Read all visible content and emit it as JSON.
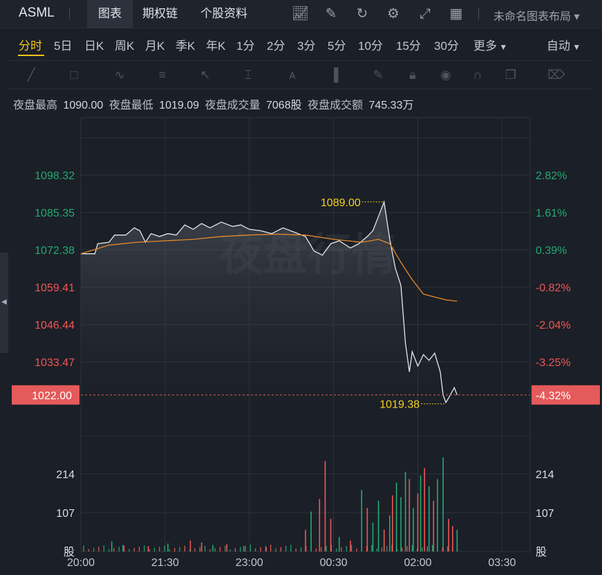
{
  "header": {
    "symbol": "ASML",
    "tabs": [
      "图表",
      "期权链",
      "个股资料"
    ],
    "layout_label": "未命名图表布局"
  },
  "timeframes": [
    "分时",
    "5日",
    "日K",
    "周K",
    "月K",
    "季K",
    "年K",
    "1分",
    "2分",
    "3分",
    "5分",
    "10分",
    "15分",
    "30分",
    "更多"
  ],
  "auto_label": "自动",
  "stats": {
    "high_label": "夜盘最高",
    "high": "1090.00",
    "low_label": "夜盘最低",
    "low": "1019.09",
    "vol_label": "夜盘成交量",
    "vol": "7068股",
    "amt_label": "夜盘成交额",
    "amt": "745.33万"
  },
  "watermark": "夜盘行情",
  "colors": {
    "up": "#22ab72",
    "down": "#f25656",
    "avg_line": "#e88a2c",
    "price_line": "#e8e8e8",
    "annotation": "#f5d123",
    "current_tag": "#e55a5a"
  },
  "chart_data": {
    "type": "line",
    "x_ticks": [
      "20:00",
      "21:30",
      "23:00",
      "00:30",
      "02:00",
      "03:30"
    ],
    "price_axis": [
      "1098.32",
      "1085.35",
      "1072.38",
      "1059.41",
      "1046.44",
      "1033.47"
    ],
    "pct_axis": [
      "2.82%",
      "1.61%",
      "0.39%",
      "-0.82%",
      "-2.04%",
      "-3.25%"
    ],
    "current_price": "1022.00",
    "current_pct": "-4.32%",
    "ylim": [
      1020,
      1098.32
    ],
    "annotation_high": "1089.00",
    "annotation_low": "1019.38",
    "volume_axis": [
      "214",
      "107"
    ],
    "volume_unit": "股",
    "price_series": [
      [
        20.0,
        1071.0
      ],
      [
        20.25,
        1071.0
      ],
      [
        20.3,
        1074.5
      ],
      [
        20.5,
        1075.0
      ],
      [
        20.6,
        1077.5
      ],
      [
        20.8,
        1077.5
      ],
      [
        20.95,
        1080.0
      ],
      [
        21.05,
        1079.0
      ],
      [
        21.15,
        1075.0
      ],
      [
        21.25,
        1078.0
      ],
      [
        21.4,
        1077.0
      ],
      [
        21.55,
        1078.0
      ],
      [
        21.7,
        1077.5
      ],
      [
        21.85,
        1081.0
      ],
      [
        22.0,
        1079.5
      ],
      [
        22.15,
        1081.5
      ],
      [
        22.3,
        1080.0
      ],
      [
        22.5,
        1082.0
      ],
      [
        22.7,
        1080.5
      ],
      [
        22.85,
        1081.0
      ],
      [
        23.0,
        1079.5
      ],
      [
        23.2,
        1079.0
      ],
      [
        23.4,
        1078.0
      ],
      [
        23.6,
        1080.0
      ],
      [
        23.8,
        1078.5
      ],
      [
        24.0,
        1077.0
      ],
      [
        24.15,
        1072.0
      ],
      [
        24.3,
        1070.5
      ],
      [
        24.45,
        1074.5
      ],
      [
        24.6,
        1075.5
      ],
      [
        24.8,
        1073.0
      ],
      [
        24.95,
        1074.5
      ],
      [
        25.1,
        1077.0
      ],
      [
        25.2,
        1079.0
      ],
      [
        25.28,
        1083.0
      ],
      [
        25.4,
        1089.0
      ],
      [
        25.5,
        1076.0
      ],
      [
        25.6,
        1066.0
      ],
      [
        25.7,
        1060.0
      ],
      [
        25.78,
        1040.0
      ],
      [
        25.85,
        1030.0
      ],
      [
        25.9,
        1037.0
      ],
      [
        26.0,
        1032.0
      ],
      [
        26.1,
        1036.0
      ],
      [
        26.2,
        1034.0
      ],
      [
        26.3,
        1036.5
      ],
      [
        26.4,
        1030.0
      ],
      [
        26.45,
        1022.0
      ],
      [
        26.5,
        1019.38
      ],
      [
        26.55,
        1021.0
      ],
      [
        26.65,
        1024.5
      ],
      [
        26.7,
        1022.0
      ]
    ],
    "avg_series": [
      [
        20.0,
        1071.0
      ],
      [
        20.5,
        1074.0
      ],
      [
        21.0,
        1075.0
      ],
      [
        21.5,
        1075.5
      ],
      [
        22.0,
        1076.0
      ],
      [
        22.5,
        1077.0
      ],
      [
        23.0,
        1077.5
      ],
      [
        23.5,
        1077.8
      ],
      [
        24.0,
        1077.5
      ],
      [
        24.5,
        1076.0
      ],
      [
        25.0,
        1075.0
      ],
      [
        25.3,
        1076.0
      ],
      [
        25.5,
        1074.5
      ],
      [
        25.7,
        1068.0
      ],
      [
        25.9,
        1062.0
      ],
      [
        26.1,
        1057.0
      ],
      [
        26.3,
        1056.0
      ],
      [
        26.5,
        1055.0
      ],
      [
        26.7,
        1054.5
      ]
    ],
    "volume_series": [
      [
        20.55,
        28,
        "up"
      ],
      [
        20.75,
        18,
        "up"
      ],
      [
        21.2,
        15,
        "down"
      ],
      [
        21.55,
        22,
        "up"
      ],
      [
        21.95,
        30,
        "down"
      ],
      [
        22.15,
        25,
        "down"
      ],
      [
        22.35,
        18,
        "up"
      ],
      [
        22.6,
        20,
        "down"
      ],
      [
        22.9,
        15,
        "up"
      ],
      [
        23.3,
        12,
        "down"
      ],
      [
        24.0,
        60,
        "down"
      ],
      [
        24.1,
        110,
        "up"
      ],
      [
        24.25,
        145,
        "down"
      ],
      [
        24.35,
        250,
        "down"
      ],
      [
        24.45,
        90,
        "down"
      ],
      [
        24.6,
        40,
        "up"
      ],
      [
        24.8,
        30,
        "down"
      ],
      [
        25.0,
        170,
        "up"
      ],
      [
        25.1,
        120,
        "down"
      ],
      [
        25.2,
        80,
        "up"
      ],
      [
        25.3,
        140,
        "up"
      ],
      [
        25.4,
        60,
        "down"
      ],
      [
        25.5,
        100,
        "up"
      ],
      [
        25.55,
        155,
        "down"
      ],
      [
        25.62,
        190,
        "up"
      ],
      [
        25.7,
        150,
        "up"
      ],
      [
        25.78,
        220,
        "up"
      ],
      [
        25.85,
        200,
        "down"
      ],
      [
        25.92,
        120,
        "up"
      ],
      [
        26.0,
        160,
        "down"
      ],
      [
        26.05,
        210,
        "up"
      ],
      [
        26.12,
        230,
        "down"
      ],
      [
        26.2,
        180,
        "up"
      ],
      [
        26.28,
        140,
        "down"
      ],
      [
        26.35,
        200,
        "up"
      ],
      [
        26.45,
        260,
        "up"
      ],
      [
        26.55,
        90,
        "down"
      ],
      [
        26.62,
        70,
        "down"
      ],
      [
        26.7,
        60,
        "up"
      ]
    ]
  }
}
